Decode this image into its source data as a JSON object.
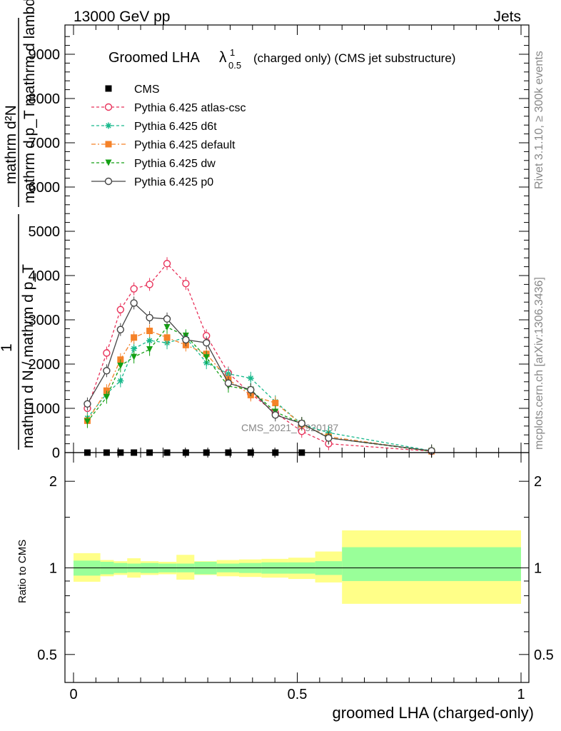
{
  "header": {
    "left": "13000 GeV pp",
    "right": "Jets"
  },
  "side_labels": {
    "rivet": "Rivet 3.1.10, ≥ 300k events",
    "mcplots": "mcplots.cern.ch [arXiv:1306.3436]"
  },
  "watermark": "CMS_2021_I1920187",
  "chart_data": [
    {
      "type": "line",
      "title_main": "Groomed LHA",
      "title_symbol": "λ",
      "title_sup": "1",
      "title_sub": "0.5",
      "title_rest": "(charged only) (CMS jet substructure)",
      "ylabel_numerator": "mathrm d²N",
      "ylabel_denominator": "mathrm d p_T mathrm d lambda",
      "ylabel_one": "1",
      "ylabel_norm": "mathrm d N / mathrm d p_T",
      "xlim": [
        0,
        1
      ],
      "ylim": [
        0,
        9000
      ],
      "y_ticks": [
        "0",
        "1000",
        "2000",
        "3000",
        "4000",
        "5000",
        "6000",
        "7000",
        "8000",
        "9000"
      ],
      "y_ticks_display": [
        "0",
        "1000",
        "2000",
        "3000",
        "4000",
        "5000",
        "6000",
        "7000",
        "8000",
        "9000"
      ],
      "legend_position": "top-left",
      "x": [
        0.031,
        0.074,
        0.105,
        0.135,
        0.17,
        0.209,
        0.251,
        0.297,
        0.346,
        0.396,
        0.451,
        0.51,
        0.57,
        0.8
      ],
      "series": [
        {
          "name": "CMS",
          "color": "#000000",
          "marker": "square-filled",
          "dash": "none",
          "values": [
            0,
            0,
            0,
            0,
            0,
            0,
            0,
            0,
            0,
            0,
            0,
            0,
            null,
            null
          ]
        },
        {
          "name": "Pythia 6.425 atlas-csc",
          "color": "#e8325a",
          "marker": "circle-open",
          "dash": "4,3",
          "values": [
            1000,
            2250,
            3230,
            3700,
            3800,
            4270,
            3820,
            2640,
            1800,
            1330,
            900,
            480,
            200,
            30
          ]
        },
        {
          "name": "Pythia 6.425 d6t",
          "color": "#19b98c",
          "marker": "star",
          "dash": "4,3",
          "values": [
            780,
            1330,
            1620,
            2350,
            2530,
            2480,
            2600,
            2030,
            1780,
            1680,
            1150,
            640,
            450,
            40
          ]
        },
        {
          "name": "Pythia 6.425 default",
          "color": "#f58228",
          "marker": "square-filled",
          "dash": "6,3,2,3",
          "values": [
            720,
            1400,
            2100,
            2600,
            2750,
            2600,
            2430,
            2230,
            1650,
            1300,
            1120,
            640,
            360,
            30
          ]
        },
        {
          "name": "Pythia 6.425 dw",
          "color": "#14a014",
          "marker": "triangle-down",
          "dash": "4,3",
          "values": [
            700,
            1250,
            1960,
            2160,
            2330,
            2830,
            2640,
            2150,
            1500,
            1420,
            920,
            660,
            330,
            30
          ]
        },
        {
          "name": "Pythia 6.425 p0",
          "color": "#444444",
          "marker": "circle-open",
          "dash": "none",
          "values": [
            1100,
            1850,
            2780,
            3380,
            3050,
            3020,
            2550,
            2480,
            1570,
            1420,
            850,
            660,
            330,
            40
          ]
        }
      ]
    },
    {
      "type": "area",
      "ylabel": "Ratio to CMS",
      "xlabel": "groomed LHA (charged-only)",
      "xlim": [
        0,
        1
      ],
      "ylim": [
        0.4,
        2.35
      ],
      "y_scale": "log",
      "x_ticks": [
        "0",
        "0.5",
        "1"
      ],
      "y_ticks": [
        "0.5",
        "1",
        "2"
      ],
      "bin_edges": [
        0,
        0.06,
        0.09,
        0.12,
        0.15,
        0.19,
        0.23,
        0.27,
        0.32,
        0.37,
        0.42,
        0.48,
        0.54,
        0.6,
        1.0
      ],
      "stat_band": {
        "color": "#99ff99",
        "low": [
          0.94,
          0.95,
          0.96,
          0.965,
          0.96,
          0.965,
          0.965,
          0.95,
          0.965,
          0.96,
          0.955,
          0.955,
          0.945,
          0.9
        ],
        "high": [
          1.06,
          1.05,
          1.04,
          1.035,
          1.04,
          1.035,
          1.035,
          1.05,
          1.035,
          1.04,
          1.045,
          1.045,
          1.055,
          1.18
        ]
      },
      "syst_band": {
        "color": "#ffff88",
        "low": [
          0.895,
          0.935,
          0.945,
          0.925,
          0.945,
          0.95,
          0.91,
          0.945,
          0.935,
          0.93,
          0.925,
          0.915,
          0.89,
          0.75
        ],
        "high": [
          1.125,
          1.065,
          1.055,
          1.08,
          1.055,
          1.05,
          1.11,
          1.055,
          1.065,
          1.07,
          1.075,
          1.085,
          1.14,
          1.35
        ]
      },
      "reference_line": 1.0
    }
  ]
}
